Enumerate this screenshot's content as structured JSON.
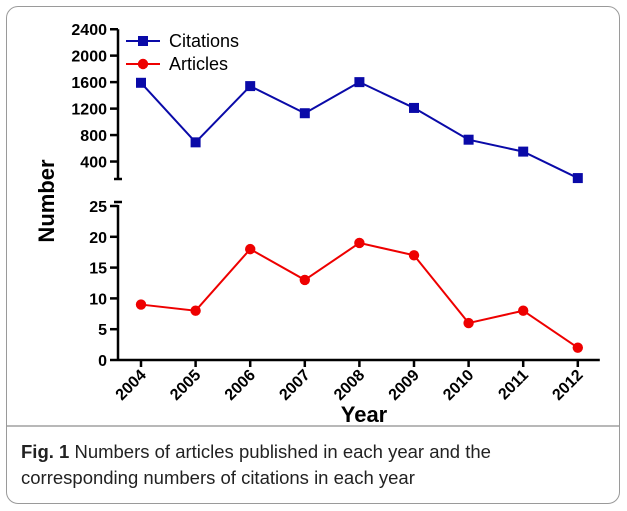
{
  "chart_data": {
    "type": "line",
    "ylabel": "Number",
    "xlabel": "Year",
    "categories": [
      "2004",
      "2005",
      "2006",
      "2007",
      "2008",
      "2009",
      "2010",
      "2011",
      "2012"
    ],
    "series": [
      {
        "name": "Citations",
        "color": "#0a0aa8",
        "marker": "square",
        "values": [
          1590,
          690,
          1540,
          1130,
          1600,
          1210,
          730,
          550,
          150
        ]
      },
      {
        "name": "Articles",
        "color": "#ee0000",
        "marker": "circle",
        "values": [
          9,
          8,
          18,
          13,
          19,
          17,
          6,
          8,
          2
        ]
      }
    ],
    "axis_break": true,
    "upper_panel": {
      "series": "Citations",
      "ylim": [
        0,
        2400
      ],
      "ticks": [
        400,
        800,
        1200,
        1600,
        2000,
        2400
      ]
    },
    "lower_panel": {
      "series": "Articles",
      "ylim": [
        0,
        25
      ],
      "ticks": [
        0,
        5,
        10,
        15,
        20,
        25
      ]
    },
    "legend_position": "top-left",
    "grid": false
  },
  "caption": {
    "label": "Fig. 1",
    "text": "Numbers of articles published in each year and the corresponding numbers of citations in each year"
  }
}
